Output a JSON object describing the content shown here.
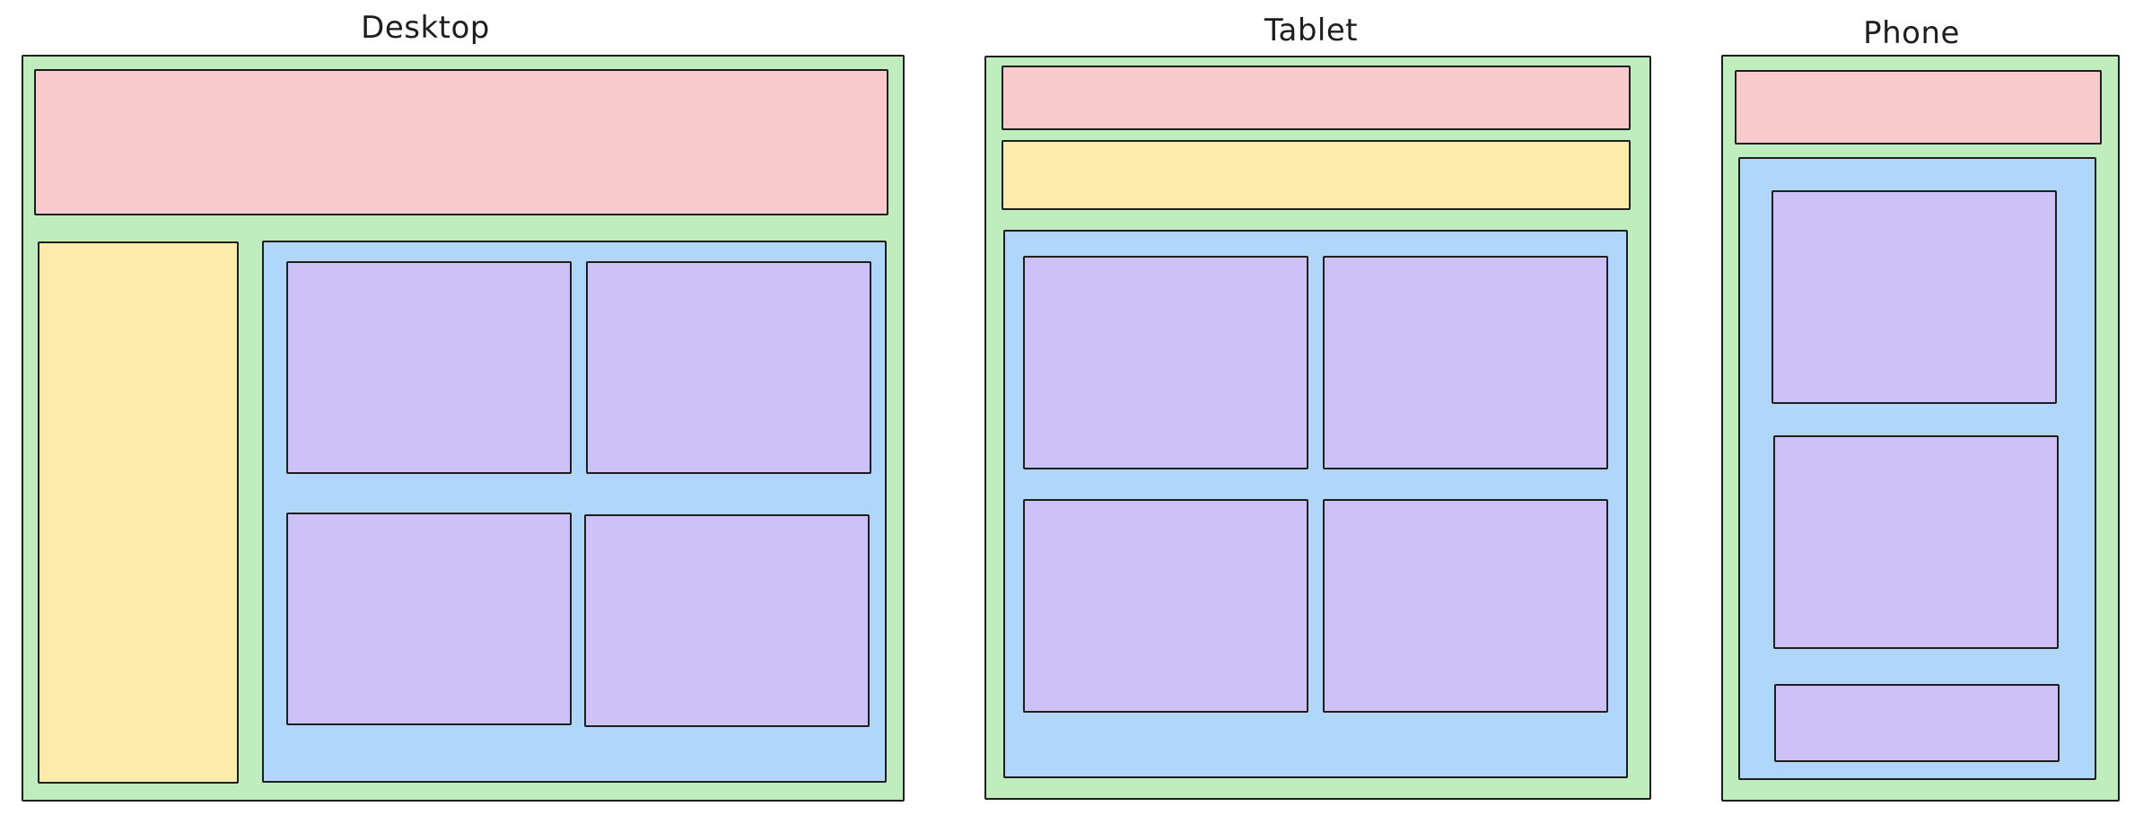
{
  "frames": {
    "desktop": {
      "label": "Desktop"
    },
    "tablet": {
      "label": "Tablet"
    },
    "phone": {
      "label": "Phone"
    }
  },
  "colors": {
    "frame_green": "#c0edbd",
    "header_red": "#f8cacb",
    "sidebar_yellow": "#fcebab",
    "content_blue": "#b0d6fa",
    "card_purple": "#cdc2f8",
    "stroke": "#1e1e1e"
  }
}
